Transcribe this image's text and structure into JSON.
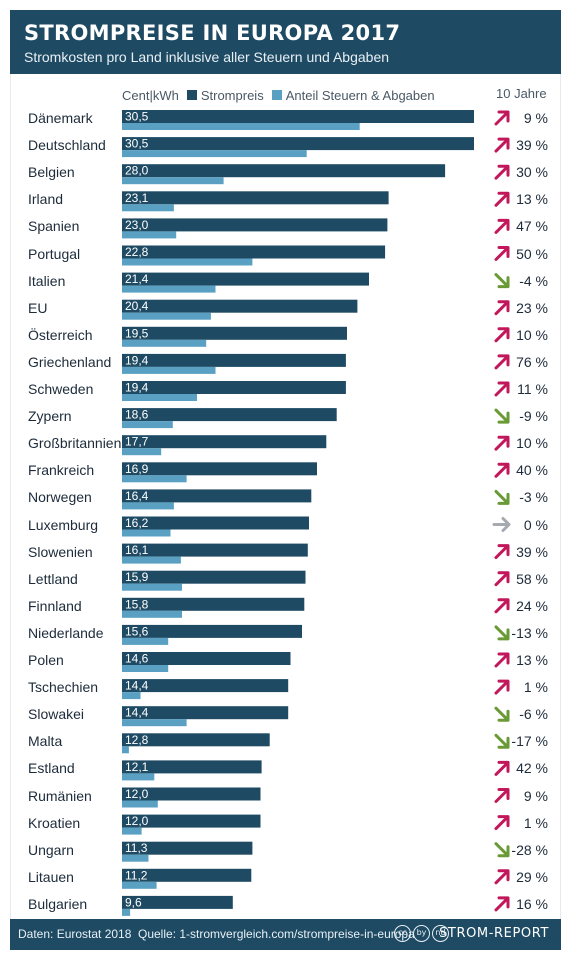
{
  "header": {
    "title": "STROMPREISE IN EUROPA 2017",
    "subtitle": "Stromkosten pro Land inklusive aller Steuern und Abgaben"
  },
  "legend": {
    "unit": "Cent|kWh",
    "series1": "Strompreis",
    "series2": "Anteil Steuern & Abgaben",
    "trend_header": "10 Jahre"
  },
  "colors": {
    "header_bg": "#1e4a63",
    "price_bar": "#1e4a63",
    "tax_bar": "#5aa0c3",
    "trend_up": "#c2185b",
    "trend_down": "#6a9a35",
    "trend_flat": "#a5aab0"
  },
  "chart_data": {
    "type": "bar",
    "title": "STROMPREISE IN EUROPA 2017",
    "subtitle": "Stromkosten pro Land inklusive aller Steuern und Abgaben",
    "ylabel": "Cent|kWh",
    "orientation": "horizontal",
    "categories": [
      "Dänemark",
      "Deutschland",
      "Belgien",
      "Irland",
      "Spanien",
      "Portugal",
      "Italien",
      "EU",
      "Österreich",
      "Griechenland",
      "Schweden",
      "Zypern",
      "Großbritannien",
      "Frankreich",
      "Norwegen",
      "Luxemburg",
      "Slowenien",
      "Lettland",
      "Finnland",
      "Niederlande",
      "Polen",
      "Tschechien",
      "Slowakei",
      "Malta",
      "Estland",
      "Rumänien",
      "Kroatien",
      "Ungarn",
      "Litauen",
      "Bulgarien"
    ],
    "series": [
      {
        "name": "Strompreis",
        "values": [
          30.5,
          30.5,
          28.0,
          23.1,
          23.0,
          22.8,
          21.4,
          20.4,
          19.5,
          19.4,
          19.4,
          18.6,
          17.7,
          16.9,
          16.4,
          16.2,
          16.1,
          15.9,
          15.8,
          15.6,
          14.6,
          14.4,
          14.4,
          12.8,
          12.1,
          12.0,
          12.0,
          11.3,
          11.2,
          9.6
        ]
      },
      {
        "name": "Anteil Steuern & Abgaben",
        "values": [
          20.6,
          16.0,
          8.8,
          4.5,
          4.7,
          11.3,
          8.1,
          7.7,
          7.3,
          8.1,
          6.5,
          4.4,
          3.4,
          5.6,
          4.5,
          4.2,
          5.1,
          5.2,
          5.2,
          4.0,
          4.0,
          1.6,
          5.6,
          0.6,
          2.8,
          3.1,
          1.7,
          2.3,
          3.0,
          0.7
        ]
      }
    ],
    "value_labels": [
      "30,5",
      "30,5",
      "28,0",
      "23,1",
      "23,0",
      "22,8",
      "21,4",
      "20,4",
      "19,5",
      "19,4",
      "19,4",
      "18,6",
      "17,7",
      "16,9",
      "16,4",
      "16,2",
      "16,1",
      "15,9",
      "15,8",
      "15,6",
      "14,6",
      "14,4",
      "14,4",
      "12,8",
      "12,1",
      "12,0",
      "12,0",
      "11,3",
      "11,2",
      "9,6"
    ],
    "trend_10y": [
      "9 %",
      "39 %",
      "30 %",
      "13 %",
      "47 %",
      "50 %",
      "-4 %",
      "23 %",
      "10 %",
      "76 %",
      "11 %",
      "-9 %",
      "10 %",
      "40 %",
      "-3 %",
      "0 %",
      "39 %",
      "58 %",
      "24 %",
      "-13 %",
      "13 %",
      "1 %",
      "-6 %",
      "-17 %",
      "42 %",
      "9 %",
      "1 %",
      "-28 %",
      "29 %",
      "16 %"
    ],
    "trend_direction": [
      "up",
      "up",
      "up",
      "up",
      "up",
      "up",
      "down",
      "up",
      "up",
      "up",
      "up",
      "down",
      "up",
      "up",
      "down",
      "flat",
      "up",
      "up",
      "up",
      "down",
      "up",
      "up",
      "down",
      "down",
      "up",
      "up",
      "up",
      "down",
      "up",
      "up"
    ],
    "xlim": [
      0,
      30.5
    ],
    "grid": false,
    "legend_position": "top"
  },
  "footer": {
    "data_source": "Daten: Eurostat 2018",
    "source": "Quelle: 1-stromvergleich.com/strompreise-in-europa",
    "license_icons": [
      "cc",
      "by",
      "nd"
    ],
    "brand": "STROM-REPORT"
  }
}
